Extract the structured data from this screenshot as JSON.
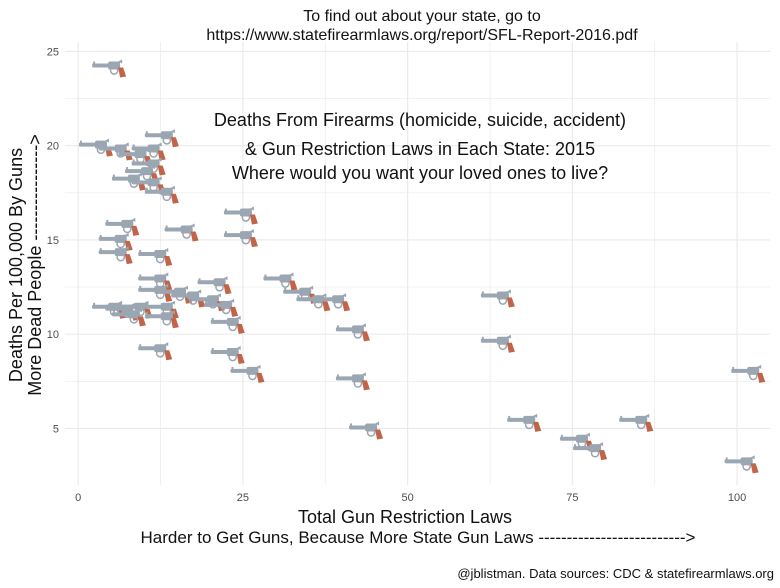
{
  "header": {
    "line1": "To find out about your state, go to",
    "line2": "https://www.statefirearmlaws.org/report/SFL-Report-2016.pdf"
  },
  "annotation": {
    "line1": "Deaths From Firearms (homicide, suicide, accident)",
    "line2": "& Gun Restriction Laws in Each State: 2015",
    "line3": "Where would you want your loved ones to live?"
  },
  "credit": "@jblistman. Data sources: CDC & statefirearmlaws.org",
  "colors": {
    "gun_metal": "#9aa6b2",
    "gun_grip": "#c0654a",
    "grid": "#ebebeb",
    "tick_text": "#4d4d4d"
  },
  "marker_icon": "revolver-icon",
  "chart_data": {
    "type": "scatter",
    "xlabel": "Total Gun Restriction Laws",
    "xlabel_sub": "Harder to Get Guns, Because More State Gun Laws -------------------------->",
    "ylabel": "Deaths Per 100,000 By Guns",
    "ylabel_sub": "More Dead People ---------------->",
    "xlim": [
      -2,
      105
    ],
    "ylim": [
      2,
      25.5
    ],
    "xticks": [
      0,
      25,
      50,
      75,
      100
    ],
    "yticks": [
      5,
      10,
      15,
      20,
      25
    ],
    "grid": true,
    "points": [
      {
        "x": 5,
        "y": 24.2
      },
      {
        "x": 3,
        "y": 20.0
      },
      {
        "x": 6,
        "y": 19.8
      },
      {
        "x": 11,
        "y": 19.8
      },
      {
        "x": 9,
        "y": 19.5
      },
      {
        "x": 13,
        "y": 20.5
      },
      {
        "x": 11,
        "y": 19.0
      },
      {
        "x": 10,
        "y": 18.6
      },
      {
        "x": 8,
        "y": 18.2
      },
      {
        "x": 11,
        "y": 18.0
      },
      {
        "x": 13,
        "y": 17.5
      },
      {
        "x": 7,
        "y": 15.8
      },
      {
        "x": 16,
        "y": 15.5
      },
      {
        "x": 25,
        "y": 16.4
      },
      {
        "x": 25,
        "y": 15.2
      },
      {
        "x": 6,
        "y": 15.0
      },
      {
        "x": 6,
        "y": 14.3
      },
      {
        "x": 12,
        "y": 14.2
      },
      {
        "x": 12,
        "y": 12.9
      },
      {
        "x": 21,
        "y": 12.7
      },
      {
        "x": 12,
        "y": 12.3
      },
      {
        "x": 15,
        "y": 12.2
      },
      {
        "x": 17,
        "y": 12.0
      },
      {
        "x": 20,
        "y": 11.8
      },
      {
        "x": 22,
        "y": 11.5
      },
      {
        "x": 31,
        "y": 12.9
      },
      {
        "x": 34,
        "y": 12.2
      },
      {
        "x": 36,
        "y": 11.8
      },
      {
        "x": 39,
        "y": 11.8
      },
      {
        "x": 5,
        "y": 11.4
      },
      {
        "x": 7,
        "y": 11.3
      },
      {
        "x": 9,
        "y": 11.4
      },
      {
        "x": 13,
        "y": 11.4
      },
      {
        "x": 8,
        "y": 11.0
      },
      {
        "x": 13,
        "y": 10.9
      },
      {
        "x": 23,
        "y": 10.6
      },
      {
        "x": 42,
        "y": 10.2
      },
      {
        "x": 64,
        "y": 12.0
      },
      {
        "x": 64,
        "y": 9.6
      },
      {
        "x": 12,
        "y": 9.2
      },
      {
        "x": 23,
        "y": 9.0
      },
      {
        "x": 26,
        "y": 8.0
      },
      {
        "x": 42,
        "y": 7.6
      },
      {
        "x": 102,
        "y": 8.0
      },
      {
        "x": 44,
        "y": 5.0
      },
      {
        "x": 68,
        "y": 5.4
      },
      {
        "x": 85,
        "y": 5.4
      },
      {
        "x": 76,
        "y": 4.4
      },
      {
        "x": 78,
        "y": 3.9
      },
      {
        "x": 101,
        "y": 3.2
      }
    ]
  }
}
